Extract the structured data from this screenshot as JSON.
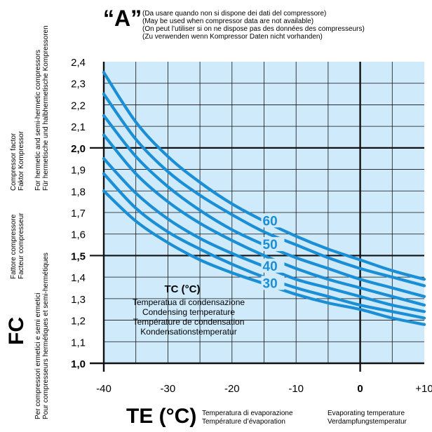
{
  "chart_data": {
    "type": "line",
    "title": "“A”",
    "notes": [
      "(Da usare quando non si dispone dei dati del compressore)",
      "(May be used when compressor data are not available)",
      "(On peut l’utiliser si on ne dispose pas des données des compresseurs)",
      "(Zu verwenden wenn Kompressor Daten nicht vorhanden)"
    ],
    "ylabel": {
      "symbol": "FC",
      "lines": [
        "Compressor factor",
        "Faktor Kompressor",
        "For hermetic and semi-hermetic compressors",
        "Für hermetische und halbhermetische Kompressoren",
        "Fattore compressore",
        "Facteur compresseur",
        "Per compressori ermetici e semi ermetici",
        "Pour compresseurs hermétiques et semi-hermétiques"
      ]
    },
    "xlabel": {
      "symbol": "TE (°C)",
      "lines": [
        "Temperatura di evaporazione",
        "Température d’évaporation",
        "Evaporating temperature",
        "Verdampfungstemperatur"
      ]
    },
    "legend_box": {
      "title": "TC (°C)",
      "lines": [
        "Temperatua di condensazione",
        "Condensing temperature",
        "Température de condensation",
        "Kondensationstemperatur"
      ]
    },
    "xlim": [
      -40,
      10
    ],
    "ylim": [
      1.0,
      2.4
    ],
    "x_ticks": [
      -40,
      -35,
      -30,
      -25,
      -20,
      -15,
      -10,
      -5,
      0,
      5,
      10
    ],
    "x_tick_labels": [
      "-40",
      "",
      "-30",
      "",
      "-20",
      "",
      "-10",
      "",
      "0",
      "",
      "+10"
    ],
    "y_ticks": [
      1.0,
      1.1,
      1.2,
      1.3,
      1.4,
      1.5,
      1.6,
      1.7,
      1.8,
      1.9,
      2.0,
      2.1,
      2.2,
      2.3,
      2.4
    ],
    "y_tick_labels": [
      "1,0",
      "1,1",
      "1,2",
      "1,3",
      "1,4",
      "1,5",
      "1,6",
      "1,7",
      "1,8",
      "1,9",
      "2,0",
      "2,1",
      "2,2",
      "2,3",
      "2,4"
    ],
    "bold_y_ticks": [
      1.0,
      1.5,
      2.0
    ],
    "grid": true,
    "colors": {
      "plot_bg": "#cfeafb",
      "curve": "#1a8fd6",
      "grid": "#111111",
      "label": "#1a8fd6"
    },
    "series": [
      {
        "name": "30",
        "x": [
          -40,
          -35,
          -30,
          -25,
          -20,
          -15,
          -10,
          -5,
          0,
          5,
          10
        ],
        "y": [
          1.8,
          1.66,
          1.56,
          1.48,
          1.42,
          1.37,
          1.32,
          1.28,
          1.25,
          1.21,
          1.18
        ]
      },
      {
        "x": [
          -40,
          -35,
          -30,
          -25,
          -20,
          -15,
          -10,
          -5,
          0,
          5,
          10
        ],
        "y": [
          1.88,
          1.72,
          1.61,
          1.53,
          1.46,
          1.4,
          1.35,
          1.31,
          1.27,
          1.24,
          1.21
        ]
      },
      {
        "name": "40",
        "x": [
          -40,
          -35,
          -30,
          -25,
          -20,
          -15,
          -10,
          -5,
          0,
          5,
          10
        ],
        "y": [
          1.95,
          1.79,
          1.67,
          1.58,
          1.51,
          1.45,
          1.39,
          1.35,
          1.31,
          1.27,
          1.24
        ]
      },
      {
        "x": [
          -40,
          -35,
          -30,
          -25,
          -20,
          -15,
          -10,
          -5,
          0,
          5,
          10
        ],
        "y": [
          2.06,
          1.88,
          1.75,
          1.65,
          1.57,
          1.5,
          1.44,
          1.39,
          1.35,
          1.31,
          1.27
        ]
      },
      {
        "name": "50",
        "x": [
          -40,
          -35,
          -30,
          -25,
          -20,
          -15,
          -10,
          -5,
          0,
          5,
          10
        ],
        "y": [
          2.15,
          1.96,
          1.82,
          1.71,
          1.62,
          1.55,
          1.49,
          1.44,
          1.39,
          1.35,
          1.31
        ]
      },
      {
        "x": [
          -40,
          -35,
          -30,
          -25,
          -20,
          -15,
          -10,
          -5,
          0,
          5,
          10
        ],
        "y": [
          2.25,
          2.04,
          1.89,
          1.78,
          1.69,
          1.61,
          1.55,
          1.49,
          1.44,
          1.4,
          1.36
        ]
      },
      {
        "name": "60",
        "x": [
          -40,
          -35,
          -30,
          -25,
          -20,
          -15,
          -10,
          -5,
          0,
          5,
          10
        ],
        "y": [
          2.35,
          2.12,
          1.96,
          1.84,
          1.74,
          1.66,
          1.59,
          1.53,
          1.48,
          1.43,
          1.39
        ]
      }
    ]
  }
}
